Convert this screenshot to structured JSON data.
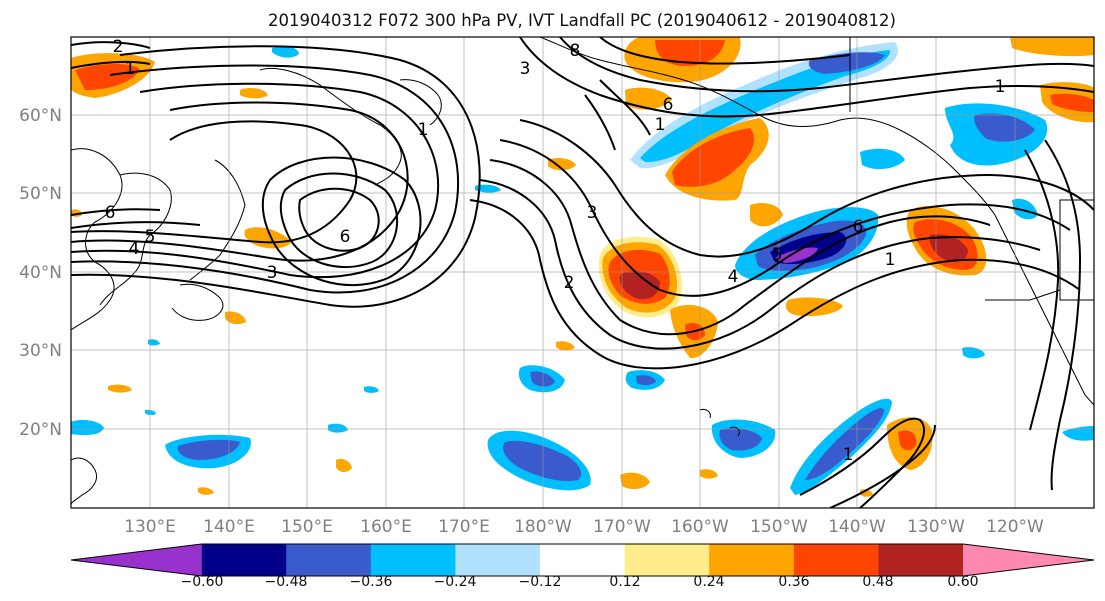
{
  "title": "2019040312 F072 300 hPa PV, IVT Landfall PC (2019040612 - 2019040812)",
  "latitude_labels": [
    "60°N",
    "50°N",
    "40°N",
    "30°N",
    "20°N"
  ],
  "longitude_labels": [
    "130°E",
    "140°E",
    "150°E",
    "160°E",
    "170°E",
    "180°W",
    "170°W",
    "160°W",
    "150°W",
    "140°W",
    "130°W",
    "120°W"
  ],
  "colorbar": {
    "colors": [
      "#9932cc",
      "#00008b",
      "#3a5bcd",
      "#00bfff",
      "#b0e2ff",
      "#ffffff",
      "#ffec8b",
      "#ffa500",
      "#ff4500",
      "#b22222",
      "#ff88b0"
    ],
    "tick_labels": [
      "−0.60",
      "−0.48",
      "−0.36",
      "−0.24",
      "−0.12",
      "0.12",
      "0.24",
      "0.36",
      "0.48",
      "0.60"
    ]
  },
  "contour_labels": [
    "2",
    "1",
    "8",
    "3",
    "1",
    "6",
    "1",
    "1",
    "6",
    "3",
    "6",
    "5",
    "4",
    "3",
    "2",
    "4",
    "6",
    "5",
    "1",
    "1"
  ]
}
